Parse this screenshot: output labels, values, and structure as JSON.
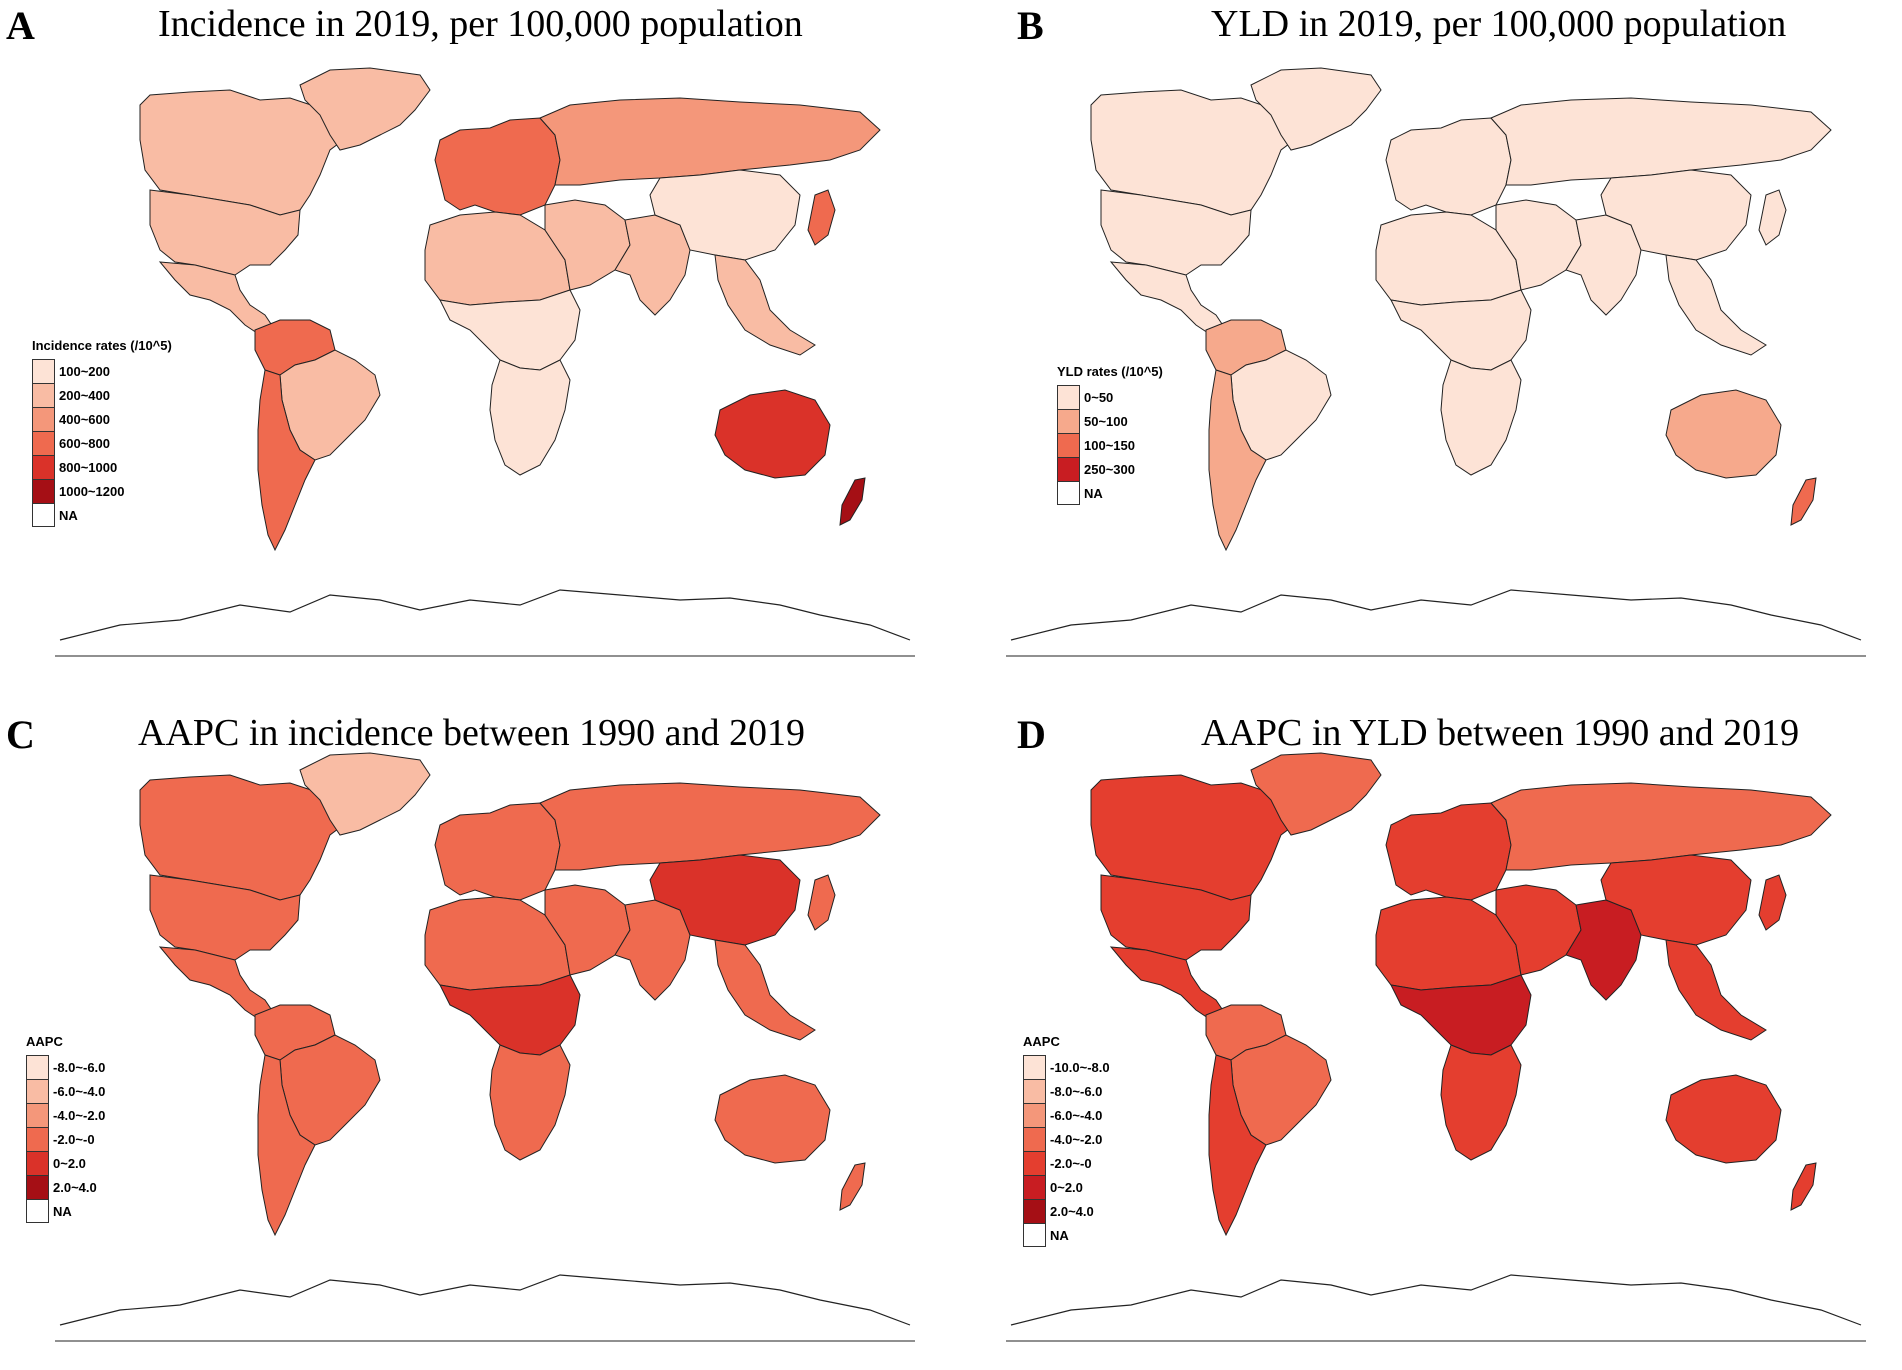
{
  "panels": [
    {
      "letter": "A",
      "title": "Incidence in 2019, per 100,000 population",
      "legend": {
        "title": "Incidence rates (/10^5)",
        "items": [
          {
            "label": "100~200",
            "color": "#fde3d6"
          },
          {
            "label": "200~400",
            "color": "#f9bca4"
          },
          {
            "label": "400~600",
            "color": "#f4977a"
          },
          {
            "label": "600~800",
            "color": "#ef6a4f"
          },
          {
            "label": "800~1000",
            "color": "#da3229"
          },
          {
            "label": "1000~1200",
            "color": "#a50f15"
          },
          {
            "label": "NA",
            "color": "#ffffff"
          }
        ]
      },
      "regions": {
        "north_america": "#f9bca4",
        "greenland": "#f9bca4",
        "usa": "#f9bca4",
        "mexico_central": "#f9bca4",
        "south_america_north": "#ef6a4f",
        "brazil": "#f9bca4",
        "south_america_south": "#ef6a4f",
        "europe": "#ef6a4f",
        "russia": "#f4977a",
        "north_africa": "#f9bca4",
        "central_africa": "#fde3d6",
        "southern_africa": "#fde3d6",
        "middle_east": "#f9bca4",
        "south_asia": "#f9bca4",
        "china": "#fde3d6",
        "southeast_asia": "#f9bca4",
        "japan": "#ef6a4f",
        "australia": "#da3229",
        "new_zealand": "#a50f15"
      }
    },
    {
      "letter": "B",
      "title": "YLD in 2019, per 100,000 population",
      "legend": {
        "title": "YLD rates (/10^5)",
        "items": [
          {
            "label": "0~50",
            "color": "#fde3d6"
          },
          {
            "label": "50~100",
            "color": "#f6a98c"
          },
          {
            "label": "100~150",
            "color": "#ef6a4f"
          },
          {
            "label": "250~300",
            "color": "#c81d22"
          },
          {
            "label": "NA",
            "color": "#ffffff"
          }
        ]
      },
      "regions": {
        "north_america": "#fde3d6",
        "greenland": "#fde3d6",
        "usa": "#fde3d6",
        "mexico_central": "#fde3d6",
        "south_america_north": "#f6a98c",
        "brazil": "#fde3d6",
        "south_america_south": "#f6a98c",
        "europe": "#fde3d6",
        "russia": "#fde3d6",
        "north_africa": "#fde3d6",
        "central_africa": "#fde3d6",
        "southern_africa": "#fde3d6",
        "middle_east": "#fde3d6",
        "south_asia": "#fde3d6",
        "china": "#fde3d6",
        "southeast_asia": "#fde3d6",
        "japan": "#fde3d6",
        "australia": "#f6a98c",
        "new_zealand": "#ef6a4f"
      }
    },
    {
      "letter": "C",
      "title": "AAPC in incidence between 1990 and 2019",
      "legend": {
        "title": "AAPC",
        "items": [
          {
            "label": "-8.0~-6.0",
            "color": "#fde3d6"
          },
          {
            "label": "-6.0~-4.0",
            "color": "#f9bca4"
          },
          {
            "label": "-4.0~-2.0",
            "color": "#f4977a"
          },
          {
            "label": "-2.0~-0",
            "color": "#ef6a4f"
          },
          {
            "label": "0~2.0",
            "color": "#da3229"
          },
          {
            "label": "2.0~4.0",
            "color": "#a50f15"
          },
          {
            "label": "NA",
            "color": "#ffffff"
          }
        ]
      },
      "regions": {
        "north_america": "#ef6a4f",
        "greenland": "#f9bca4",
        "usa": "#ef6a4f",
        "mexico_central": "#ef6a4f",
        "south_america_north": "#ef6a4f",
        "brazil": "#ef6a4f",
        "south_america_south": "#ef6a4f",
        "europe": "#ef6a4f",
        "russia": "#ef6a4f",
        "north_africa": "#ef6a4f",
        "central_africa": "#da3229",
        "southern_africa": "#ef6a4f",
        "middle_east": "#ef6a4f",
        "south_asia": "#ef6a4f",
        "china": "#da3229",
        "southeast_asia": "#ef6a4f",
        "japan": "#ef6a4f",
        "australia": "#ef6a4f",
        "new_zealand": "#ef6a4f"
      }
    },
    {
      "letter": "D",
      "title": "AAPC in YLD between 1990 and 2019",
      "legend": {
        "title": "AAPC",
        "items": [
          {
            "label": "-10.0~-8.0",
            "color": "#fde3d6"
          },
          {
            "label": "-8.0~-6.0",
            "color": "#f9bca4"
          },
          {
            "label": "-6.0~-4.0",
            "color": "#f4977a"
          },
          {
            "label": "-4.0~-2.0",
            "color": "#ef6a4f"
          },
          {
            "label": "-2.0~-0",
            "color": "#e43e2f"
          },
          {
            "label": "0~2.0",
            "color": "#c81d22"
          },
          {
            "label": "2.0~4.0",
            "color": "#a50f15"
          },
          {
            "label": "NA",
            "color": "#ffffff"
          }
        ]
      },
      "regions": {
        "north_america": "#e43e2f",
        "greenland": "#ef6a4f",
        "usa": "#e43e2f",
        "mexico_central": "#e43e2f",
        "south_america_north": "#ef6a4f",
        "brazil": "#ef6a4f",
        "south_america_south": "#e43e2f",
        "europe": "#e43e2f",
        "russia": "#ef6a4f",
        "north_africa": "#e43e2f",
        "central_africa": "#c81d22",
        "southern_africa": "#e43e2f",
        "middle_east": "#e43e2f",
        "south_asia": "#c81d22",
        "china": "#e43e2f",
        "southeast_asia": "#e43e2f",
        "japan": "#e43e2f",
        "australia": "#e43e2f",
        "new_zealand": "#e43e2f"
      }
    }
  ]
}
